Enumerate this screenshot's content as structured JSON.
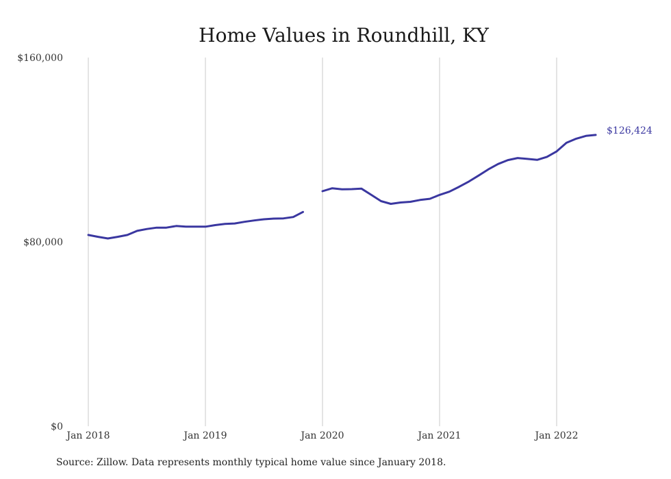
{
  "chart_data": {
    "type": "line",
    "title": "Home Values in Roundhill, KY",
    "xlabel": "",
    "ylabel": "",
    "ylim": [
      0,
      160000
    ],
    "yticks": [
      {
        "value": 0,
        "label": "$0"
      },
      {
        "value": 80000,
        "label": "$80,000"
      },
      {
        "value": 160000,
        "label": "$160,000"
      }
    ],
    "xticks": [
      {
        "value": "2018-01",
        "label": "Jan 2018"
      },
      {
        "value": "2019-01",
        "label": "Jan 2019"
      },
      {
        "value": "2020-01",
        "label": "Jan 2020"
      },
      {
        "value": "2021-01",
        "label": "Jan 2021"
      },
      {
        "value": "2022-01",
        "label": "Jan 2022"
      }
    ],
    "grid": "vertical",
    "color": "#3a37a0",
    "end_label": "$126,424",
    "series": [
      {
        "segments": [
          {
            "x": [
              "2018-01",
              "2018-02",
              "2018-03",
              "2018-04",
              "2018-05",
              "2018-06",
              "2018-07",
              "2018-08",
              "2018-09",
              "2018-10",
              "2018-11",
              "2018-12",
              "2019-01",
              "2019-02",
              "2019-03",
              "2019-04",
              "2019-05",
              "2019-06",
              "2019-07",
              "2019-08",
              "2019-09",
              "2019-10",
              "2019-11"
            ],
            "y": [
              83000,
              82200,
              81500,
              82200,
              83000,
              84800,
              85600,
              86200,
              86200,
              86900,
              86600,
              86600,
              86600,
              87300,
              87800,
              88000,
              88700,
              89300,
              89800,
              90100,
              90200,
              90800,
              93000
            ]
          },
          {
            "x": [
              "2020-01",
              "2020-02",
              "2020-03",
              "2020-04",
              "2020-05",
              "2020-06",
              "2020-07",
              "2020-08",
              "2020-09",
              "2020-10",
              "2020-11",
              "2020-12",
              "2021-01",
              "2021-02",
              "2021-03",
              "2021-04",
              "2021-05",
              "2021-06",
              "2021-07",
              "2021-08",
              "2021-09",
              "2021-10",
              "2021-11",
              "2021-12",
              "2022-01",
              "2022-02",
              "2022-03",
              "2022-04",
              "2022-05"
            ],
            "y": [
              102000,
              103300,
              102800,
              102900,
              103100,
              100400,
              97700,
              96500,
              97100,
              97400,
              98200,
              98700,
              100400,
              101800,
              103900,
              106200,
              108800,
              111500,
              113800,
              115500,
              116400,
              116000,
              115600,
              116900,
              119300,
              123000,
              124800,
              126000,
              126424
            ]
          }
        ]
      }
    ]
  },
  "footer": {
    "source": "Source: Zillow. Data represents monthly typical home value since January 2018."
  }
}
